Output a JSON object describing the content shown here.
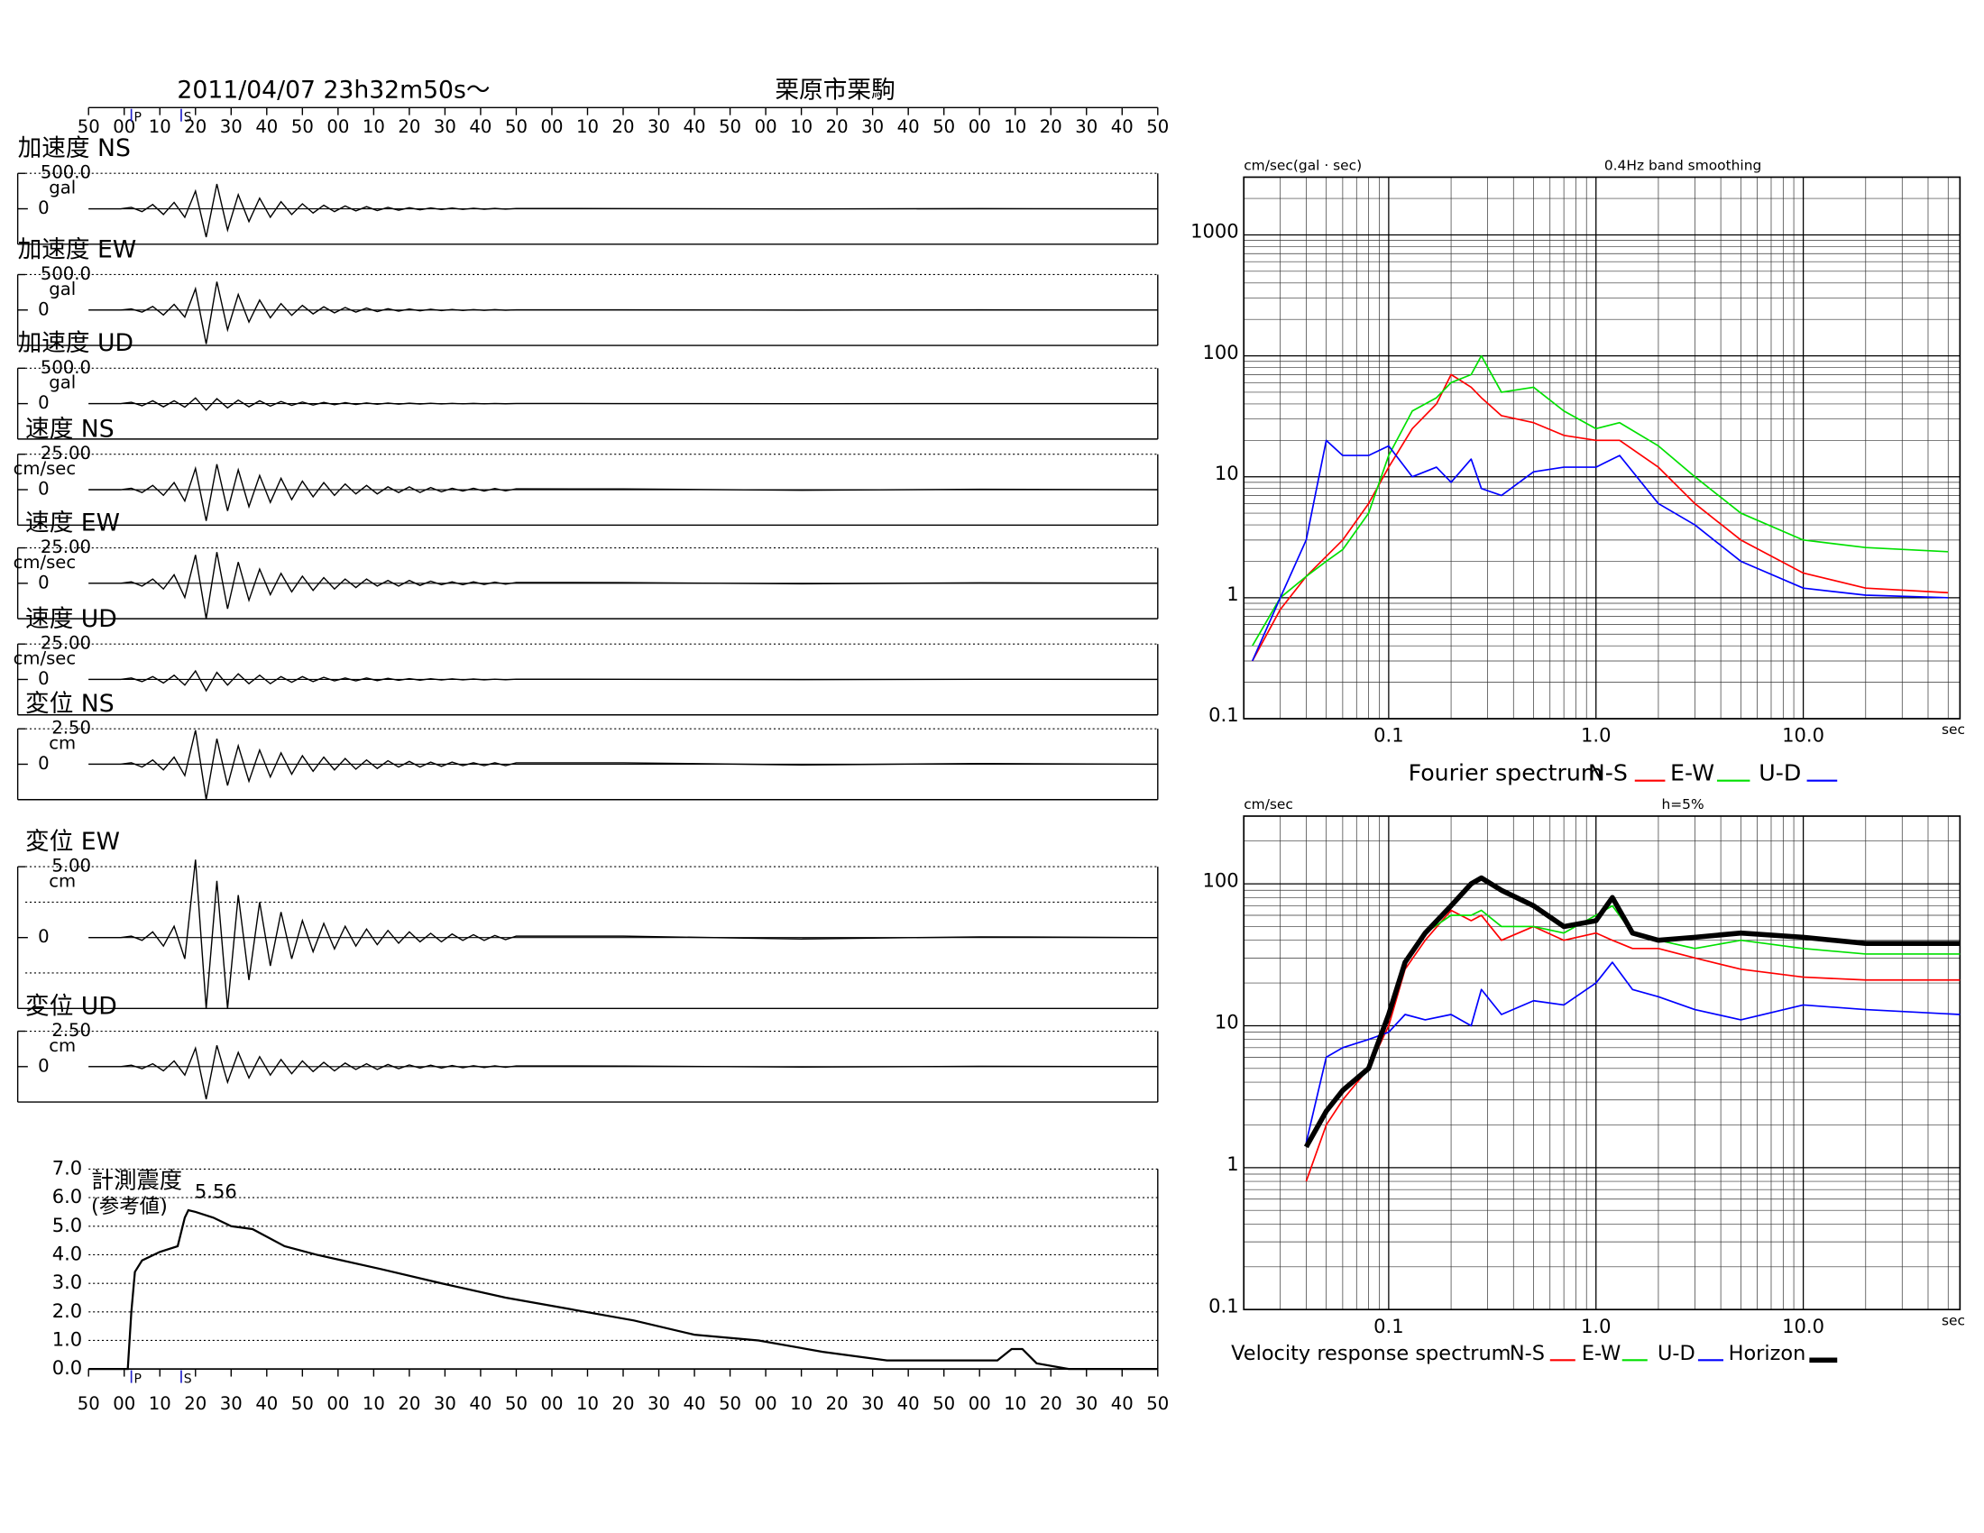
{
  "chart_data": [
    {
      "type": "seismogram",
      "title": "2011/04/07  23h32m50s〜",
      "station": "栗原市栗駒",
      "tlim": [
        0,
        300
      ],
      "time_ticks": [
        {
          "value": 0,
          "label": "50"
        },
        {
          "value": 10,
          "label": "00"
        },
        {
          "value": 20,
          "label": "10"
        },
        {
          "value": 30,
          "label": "20"
        },
        {
          "value": 40,
          "label": "30"
        },
        {
          "value": 50,
          "label": "40"
        },
        {
          "value": 60,
          "label": "50"
        },
        {
          "value": 70,
          "label": "00"
        },
        {
          "value": 80,
          "label": "10"
        },
        {
          "value": 90,
          "label": "20"
        },
        {
          "value": 100,
          "label": "30"
        },
        {
          "value": 110,
          "label": "40"
        },
        {
          "value": 120,
          "label": "50"
        },
        {
          "value": 130,
          "label": "00"
        },
        {
          "value": 140,
          "label": "10"
        },
        {
          "value": 150,
          "label": "20"
        },
        {
          "value": 160,
          "label": "30"
        },
        {
          "value": 170,
          "label": "40"
        },
        {
          "value": 180,
          "label": "50"
        },
        {
          "value": 190,
          "label": "00"
        },
        {
          "value": 200,
          "label": "10"
        },
        {
          "value": 210,
          "label": "20"
        },
        {
          "value": 220,
          "label": "30"
        },
        {
          "value": 230,
          "label": "40"
        },
        {
          "value": 240,
          "label": "50"
        },
        {
          "value": 250,
          "label": "00"
        },
        {
          "value": 260,
          "label": "10"
        },
        {
          "value": 270,
          "label": "20"
        },
        {
          "value": 280,
          "label": "30"
        },
        {
          "value": 290,
          "label": "40"
        },
        {
          "value": 300,
          "label": "50"
        }
      ],
      "phases": [
        {
          "label": "P",
          "t": 12
        },
        {
          "label": "S",
          "t": 26
        }
      ],
      "t": [
        0,
        3,
        6,
        9,
        12,
        15,
        18,
        21,
        24,
        27,
        30,
        33,
        36,
        39,
        42,
        45,
        48,
        51,
        54,
        57,
        60,
        63,
        66,
        69,
        72,
        75,
        78,
        81,
        84,
        87,
        90,
        93,
        96,
        99,
        102,
        105,
        108,
        111,
        114,
        117,
        120,
        150,
        200,
        250,
        300
      ],
      "panels": [
        {
          "label": "加速度 NS",
          "unit": "gal",
          "scale": {
            "value": 500,
            "label": "500.0"
          },
          "zero": 0,
          "values": [
            0,
            0,
            0,
            0,
            20,
            -40,
            60,
            -80,
            90,
            -120,
            250,
            -400,
            350,
            -300,
            200,
            -180,
            150,
            -120,
            100,
            -80,
            70,
            -60,
            50,
            -40,
            40,
            -30,
            30,
            -25,
            20,
            -20,
            15,
            -15,
            12,
            -10,
            10,
            -8,
            8,
            -6,
            5,
            -5,
            4,
            3,
            -2,
            2,
            0
          ]
        },
        {
          "label": "加速度 EW",
          "unit": "gal",
          "scale": {
            "value": 500,
            "label": "500.0"
          },
          "zero": 0,
          "values": [
            0,
            0,
            0,
            0,
            15,
            -30,
            50,
            -70,
            80,
            -100,
            300,
            -480,
            400,
            -280,
            220,
            -170,
            140,
            -110,
            90,
            -75,
            65,
            -55,
            45,
            -40,
            35,
            -30,
            28,
            -22,
            18,
            -16,
            14,
            -12,
            10,
            -9,
            8,
            -7,
            6,
            -5,
            5,
            -4,
            3,
            3,
            -2,
            2,
            0
          ]
        },
        {
          "label": "加速度 UD",
          "unit": "gal",
          "scale": {
            "value": 500,
            "label": "500.0"
          },
          "zero": 0,
          "values": [
            0,
            0,
            0,
            0,
            20,
            -30,
            40,
            -45,
            40,
            -50,
            80,
            -90,
            70,
            -60,
            50,
            -45,
            40,
            -35,
            30,
            -25,
            22,
            -20,
            18,
            -15,
            14,
            -12,
            10,
            -9,
            8,
            -7,
            6,
            -5,
            5,
            -4,
            4,
            -3,
            3,
            -3,
            2,
            -2,
            2,
            1,
            -1,
            1,
            0
          ]
        },
        {
          "label": "速度 NS",
          "unit": "cm/sec",
          "scale": {
            "value": 25,
            "label": "25.00"
          },
          "zero": 0,
          "values": [
            0,
            0,
            0,
            0,
            1,
            -2,
            3,
            -4,
            5,
            -8,
            15,
            -22,
            18,
            -15,
            14,
            -12,
            10,
            -9,
            8,
            -7,
            6,
            -5,
            5,
            -4,
            4,
            -3,
            3,
            -3,
            2,
            -2,
            2,
            -2,
            1.5,
            -1.5,
            1,
            -1,
            1,
            -1,
            0.8,
            -0.8,
            0.6,
            0.5,
            -0.4,
            0.3,
            0
          ]
        },
        {
          "label": "速度 EW",
          "unit": "cm/sec",
          "scale": {
            "value": 25,
            "label": "25.00"
          },
          "zero": 0,
          "values": [
            0,
            0,
            0,
            0,
            1,
            -2,
            3,
            -4,
            6,
            -10,
            20,
            -25,
            22,
            -18,
            15,
            -12,
            10,
            -8,
            7,
            -6,
            5,
            -5,
            4,
            -4,
            3,
            -3,
            3,
            -2,
            2,
            -2,
            2,
            -1.5,
            1.5,
            -1,
            1,
            -1,
            1,
            -0.8,
            0.8,
            -0.6,
            0.6,
            0.5,
            -0.4,
            0.3,
            0
          ]
        },
        {
          "label": "速度 UD",
          "unit": "cm/sec",
          "scale": {
            "value": 25,
            "label": "25.00"
          },
          "zero": 0,
          "values": [
            0,
            0,
            0,
            0,
            1,
            -1.5,
            2,
            -2.5,
            3,
            -4,
            6,
            -8,
            5,
            -4,
            4,
            -3,
            3,
            -3,
            2,
            -2,
            2,
            -1.5,
            1.5,
            -1,
            1,
            -1,
            1,
            -0.8,
            0.8,
            -0.6,
            0.6,
            -0.5,
            0.5,
            -0.4,
            0.4,
            -0.3,
            0.3,
            -0.3,
            0.2,
            -0.2,
            0.2,
            0.1,
            -0.1,
            0.1,
            0
          ]
        },
        {
          "label": "変位 NS",
          "unit": "cm",
          "scale": {
            "value": 2.5,
            "label": "2.50"
          },
          "zero": 0,
          "values": [
            0,
            0,
            0,
            0,
            0.1,
            -0.2,
            0.3,
            -0.4,
            0.5,
            -0.8,
            2.4,
            -2.5,
            1.8,
            -1.5,
            1.3,
            -1.2,
            1.0,
            -0.9,
            0.8,
            -0.7,
            0.6,
            -0.5,
            0.5,
            -0.4,
            0.4,
            -0.35,
            0.3,
            -0.3,
            0.25,
            -0.2,
            0.2,
            -0.2,
            0.15,
            -0.15,
            0.15,
            -0.1,
            0.1,
            -0.1,
            0.1,
            -0.1,
            0.1,
            0.1,
            -0.05,
            0.05,
            0
          ]
        },
        {
          "label": "変位 EW",
          "unit": "cm",
          "scale": {
            "value": 5,
            "label": "5.00"
          },
          "zero": 0,
          "values": [
            0,
            0,
            0,
            0,
            0.1,
            -0.2,
            0.4,
            -0.6,
            0.8,
            -1.5,
            5.5,
            -5,
            4,
            -5,
            3,
            -3,
            2.5,
            -2,
            1.8,
            -1.5,
            1.2,
            -1,
            1,
            -0.8,
            0.8,
            -0.6,
            0.6,
            -0.5,
            0.5,
            -0.4,
            0.4,
            -0.3,
            0.3,
            -0.3,
            0.25,
            -0.2,
            0.2,
            -0.2,
            0.15,
            -0.15,
            0.1,
            0.1,
            -0.1,
            0.05,
            0
          ]
        },
        {
          "label": "変位 UD",
          "unit": "cm",
          "scale": {
            "value": 2.5,
            "label": "2.50"
          },
          "zero": 0,
          "values": [
            0,
            0,
            0,
            0,
            0.1,
            -0.15,
            0.2,
            -0.3,
            0.4,
            -0.6,
            1.3,
            -2.3,
            1.5,
            -1.1,
            1.0,
            -0.8,
            0.7,
            -0.6,
            0.5,
            -0.5,
            0.4,
            -0.35,
            0.3,
            -0.3,
            0.25,
            -0.2,
            0.2,
            -0.2,
            0.15,
            -0.15,
            0.12,
            -0.1,
            0.1,
            -0.1,
            0.08,
            -0.08,
            0.06,
            -0.06,
            0.05,
            -0.05,
            0.05,
            0.04,
            -0.03,
            0.02,
            0
          ]
        }
      ],
      "intensity": {
        "label": "計測震度",
        "sublabel": "(参考値)",
        "ylim": [
          0,
          7
        ],
        "yticks": [
          {
            "value": 0,
            "label": "0.0"
          },
          {
            "value": 1,
            "label": "1.0"
          },
          {
            "value": 2,
            "label": "2.0"
          },
          {
            "value": 3,
            "label": "3.0"
          },
          {
            "value": 4,
            "label": "4.0"
          },
          {
            "value": 5,
            "label": "5.0"
          },
          {
            "value": 6,
            "label": "6.0"
          },
          {
            "value": 7,
            "label": "7.0"
          }
        ],
        "t": [
          0,
          11,
          12,
          13,
          15,
          20,
          25,
          27,
          28,
          30,
          35,
          40,
          46,
          55,
          64,
          82,
          99,
          117,
          135,
          153,
          170,
          188,
          206,
          224,
          241,
          255,
          259,
          262,
          266,
          275,
          300
        ],
        "values": [
          0,
          0,
          2.0,
          3.4,
          3.8,
          4.1,
          4.3,
          5.3,
          5.56,
          5.5,
          5.3,
          5.0,
          4.9,
          4.3,
          4.0,
          3.5,
          3.0,
          2.5,
          2.1,
          1.7,
          1.2,
          1.0,
          0.6,
          0.3,
          0.3,
          0.3,
          0.7,
          0.7,
          0.2,
          0,
          0
        ]
      }
    },
    {
      "type": "line",
      "log_x": true,
      "log_y": true,
      "grid": true,
      "y_label": "cm/sec(gal · sec)",
      "note": "0.4Hz band smoothing",
      "x_label": "sec",
      "legend_title": "Fourier spectrum",
      "xlim": [
        0.02,
        57
      ],
      "ylim": [
        0.1,
        3000
      ],
      "xticks": [
        0.1,
        {
          "value": 1,
          "label": "1.0"
        },
        {
          "value": 10,
          "label": "10.0"
        }
      ],
      "yticks": [
        0.1,
        1,
        10,
        100,
        1000
      ],
      "x": [
        0.022,
        0.03,
        0.04,
        0.05,
        0.06,
        0.08,
        0.1,
        0.13,
        0.17,
        0.2,
        0.25,
        0.28,
        0.35,
        0.5,
        0.7,
        1.0,
        1.3,
        2,
        3,
        5,
        10,
        20,
        50
      ],
      "series": [
        {
          "name": "N-S",
          "color": "#ff0000",
          "linewidth": 1.2,
          "values": [
            0.3,
            0.8,
            1.5,
            2.2,
            3,
            6,
            12,
            25,
            40,
            70,
            55,
            45,
            32,
            28,
            22,
            20,
            20,
            12,
            6,
            3,
            1.6,
            1.2,
            1.1
          ]
        },
        {
          "name": "E-W",
          "color": "#00e000",
          "linewidth": 1.2,
          "values": [
            0.4,
            1,
            1.5,
            2,
            2.5,
            5,
            15,
            35,
            45,
            60,
            70,
            100,
            50,
            55,
            35,
            25,
            28,
            18,
            10,
            5,
            3,
            2.6,
            2.4
          ]
        },
        {
          "name": "U-D",
          "color": "#0000ff",
          "linewidth": 1.2,
          "values": [
            0.3,
            1,
            3,
            20,
            15,
            15,
            18,
            10,
            12,
            9,
            14,
            8,
            7,
            11,
            12,
            12,
            15,
            6,
            4,
            2,
            1.2,
            1.05,
            1.0
          ]
        }
      ]
    },
    {
      "type": "line",
      "log_x": true,
      "log_y": true,
      "grid": true,
      "y_label": "cm/sec",
      "note": "h=5%",
      "x_label": "sec",
      "legend_title": "Velocity response spectrum",
      "xlim": [
        0.02,
        57
      ],
      "ylim": [
        0.1,
        300
      ],
      "xticks": [
        0.1,
        {
          "value": 1,
          "label": "1.0"
        },
        {
          "value": 10,
          "label": "10.0"
        }
      ],
      "yticks": [
        0.1,
        1,
        10,
        100
      ],
      "x": [
        0.04,
        0.05,
        0.06,
        0.08,
        0.1,
        0.12,
        0.15,
        0.2,
        0.25,
        0.28,
        0.35,
        0.5,
        0.7,
        1.0,
        1.2,
        1.5,
        2,
        3,
        5,
        10,
        20,
        57
      ],
      "series": [
        {
          "name": "N-S",
          "color": "#ff0000",
          "linewidth": 1.2,
          "values": [
            0.8,
            2,
            3,
            5,
            10,
            25,
            40,
            65,
            55,
            60,
            40,
            50,
            40,
            45,
            40,
            35,
            35,
            30,
            25,
            22,
            21,
            21
          ]
        },
        {
          "name": "E-W",
          "color": "#00e000",
          "linewidth": 1.2,
          "values": [
            1.5,
            2.5,
            3.5,
            5,
            12,
            28,
            45,
            60,
            60,
            65,
            50,
            50,
            45,
            60,
            70,
            45,
            40,
            35,
            40,
            35,
            32,
            32
          ]
        },
        {
          "name": "U-D",
          "color": "#0000ff",
          "linewidth": 1.2,
          "values": [
            1.5,
            6,
            7,
            8,
            9,
            12,
            11,
            12,
            10,
            18,
            12,
            15,
            14,
            20,
            28,
            18,
            16,
            13,
            11,
            14,
            13,
            12
          ]
        },
        {
          "name": "Horizon",
          "color": "#000000",
          "linewidth": 4,
          "values": [
            1.4,
            2.5,
            3.5,
            5,
            12,
            28,
            45,
            70,
            100,
            110,
            90,
            70,
            50,
            55,
            80,
            45,
            40,
            42,
            45,
            42,
            38,
            38
          ]
        }
      ]
    }
  ]
}
